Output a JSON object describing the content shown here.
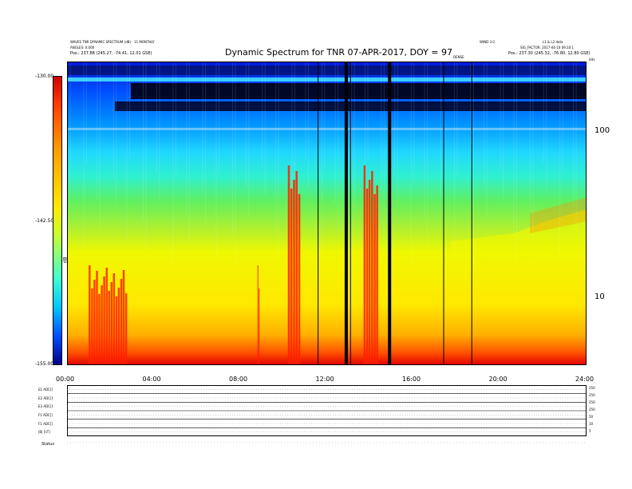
{
  "header": {
    "left_line1": "WAVES TNR DYNAMIC SPECTRUM (dB) - 11 MONTHLY",
    "left_line2": "ANGLES: 0.000",
    "left_pos": "Pos.:  237.88 (245.27, -74.41, 12.01 GSE)",
    "center_small": "DENSE",
    "right_top1": "WIND 3.0",
    "right_top2": "L1 & L2 data",
    "right_line2": "SIG_FACTOR: 2017-04-10 09:10:1",
    "right_pos": "Pos.:  237.30 (245.32, -76.80, 12.80 GSE)",
    "right_units": "kHz",
    "right_v": "V"
  },
  "chart_data": {
    "type": "heatmap",
    "title": "Dynamic Spectrum for TNR 07-APR-2017, DOY = 97",
    "xlabel": "",
    "ylabel": "kHz",
    "x_tick_labels": [
      "00:00",
      "04:00",
      "08:00",
      "12:00",
      "16:00",
      "20:00",
      "24:00"
    ],
    "x_range_hours": [
      0,
      24
    ],
    "y_scale": "log",
    "y_range": [
      4,
      250
    ],
    "y_tick_labels": [
      "100",
      "10"
    ],
    "y_ticks": [
      100,
      10
    ],
    "colorbar": {
      "label": "dB",
      "tick_labels": [
        "-130.00",
        "-142.50",
        "-155.00"
      ],
      "range": [
        -155,
        -130
      ],
      "colormap": "rainbow (blue low → red high)"
    },
    "data_gap_lines_hours": [
      11.6,
      12.9,
      13.1,
      14.9,
      17.4,
      18.7
    ],
    "bright_bursts": [
      {
        "start_h": 1.0,
        "end_h": 2.8
      },
      {
        "start_h": 8.8,
        "end_h": 8.9
      },
      {
        "start_h": 10.2,
        "end_h": 10.8
      },
      {
        "start_h": 13.7,
        "end_h": 14.4
      }
    ]
  },
  "bottom_panel": {
    "rows": [
      {
        "label": "E1 ADC[]"
      },
      {
        "label": "E2 ADC[]"
      },
      {
        "label": "E3 ADC[]"
      },
      {
        "label": "F1 ADC[]"
      },
      {
        "label": "F1 ADC[]"
      },
      {
        "label": "|B| [nT]"
      }
    ],
    "right_labels": [
      "250",
      "250",
      "250",
      "250",
      "50",
      "10",
      "5"
    ],
    "footer_label": "Status"
  }
}
